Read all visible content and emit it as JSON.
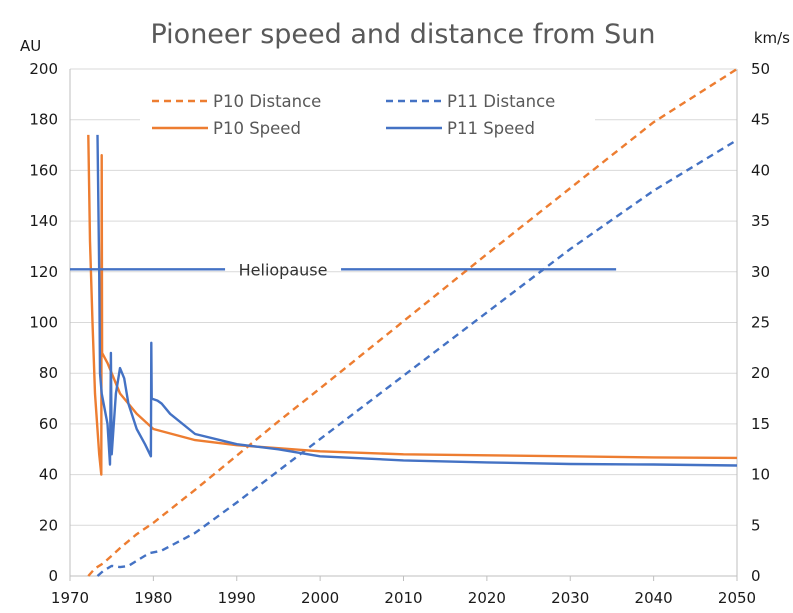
{
  "chart_data": {
    "type": "line",
    "title": "Pioneer speed and distance from Sun",
    "y_left_unit": "AU",
    "y_right_unit": "km/s",
    "xlim": [
      1970,
      2050
    ],
    "ylim_left": [
      0,
      200
    ],
    "ylim_right": [
      0,
      50
    ],
    "x_ticks": [
      "1970",
      "1980",
      "1990",
      "2000",
      "2010",
      "2020",
      "2030",
      "2040",
      "2050"
    ],
    "y_left_ticks": [
      "0",
      "20",
      "40",
      "60",
      "80",
      "100",
      "120",
      "140",
      "160",
      "180",
      "200"
    ],
    "y_right_ticks": [
      "0",
      "5",
      "10",
      "15",
      "20",
      "25",
      "30",
      "35",
      "40",
      "45",
      "50"
    ],
    "grid": "horizontal",
    "legend_position": "top-left",
    "series": [
      {
        "name": "P10 Distance",
        "axis": "left",
        "style": "dashed",
        "color": "#ED7D31",
        "points": [
          [
            1972.2,
            0
          ],
          [
            1973.0,
            3
          ],
          [
            1974.0,
            5
          ],
          [
            1975.0,
            8
          ],
          [
            1976.0,
            11
          ],
          [
            1978.0,
            16.5
          ],
          [
            1980.0,
            21
          ],
          [
            1985.0,
            34
          ],
          [
            1990.0,
            47.5
          ],
          [
            1995.0,
            61
          ],
          [
            2000.0,
            74
          ],
          [
            2010.0,
            100.5
          ],
          [
            2020.0,
            127
          ],
          [
            2030.0,
            153
          ],
          [
            2040.0,
            179
          ],
          [
            2050.0,
            200
          ]
        ]
      },
      {
        "name": "P11 Distance",
        "axis": "left",
        "style": "dashed",
        "color": "#4472C4",
        "points": [
          [
            1973.3,
            0
          ],
          [
            1974.0,
            2
          ],
          [
            1975.0,
            4
          ],
          [
            1976.0,
            3.5
          ],
          [
            1977.0,
            4
          ],
          [
            1978.0,
            6
          ],
          [
            1979.5,
            9
          ],
          [
            1981.0,
            10
          ],
          [
            1985.0,
            17
          ],
          [
            1990.0,
            29
          ],
          [
            1995.0,
            41.5
          ],
          [
            2000.0,
            54
          ],
          [
            2010.0,
            79
          ],
          [
            2020.0,
            104
          ],
          [
            2030.0,
            129
          ],
          [
            2040.0,
            152
          ],
          [
            2050.0,
            172
          ]
        ]
      },
      {
        "name": "P10 Speed",
        "axis": "right",
        "style": "solid",
        "color": "#ED7D31",
        "points": [
          [
            1972.2,
            43.5
          ],
          [
            1972.4,
            33
          ],
          [
            1972.7,
            25
          ],
          [
            1973.0,
            18
          ],
          [
            1973.5,
            12
          ],
          [
            1973.75,
            10
          ],
          [
            1973.8,
            41.5
          ],
          [
            1973.85,
            22
          ],
          [
            1974.5,
            21
          ],
          [
            1975.0,
            20
          ],
          [
            1976.0,
            18
          ],
          [
            1977.0,
            17
          ],
          [
            1978.0,
            16
          ],
          [
            1980.0,
            14.5
          ],
          [
            1985.0,
            13.4
          ],
          [
            1990.0,
            12.9
          ],
          [
            1995.0,
            12.6
          ],
          [
            2000.0,
            12.3
          ],
          [
            2010.0,
            12.0
          ],
          [
            2020.0,
            11.9
          ],
          [
            2030.0,
            11.8
          ],
          [
            2040.0,
            11.7
          ],
          [
            2050.0,
            11.65
          ]
        ]
      },
      {
        "name": "P11 Speed",
        "axis": "right",
        "style": "solid",
        "color": "#4472C4",
        "points": [
          [
            1973.3,
            43.5
          ],
          [
            1973.5,
            30
          ],
          [
            1973.6,
            20
          ],
          [
            1973.8,
            18
          ],
          [
            1974.5,
            15
          ],
          [
            1974.8,
            11
          ],
          [
            1974.9,
            22
          ],
          [
            1975.0,
            12
          ],
          [
            1975.5,
            18
          ],
          [
            1976.0,
            20.5
          ],
          [
            1976.5,
            19.5
          ],
          [
            1977.0,
            17
          ],
          [
            1978.0,
            14.5
          ],
          [
            1979.0,
            13
          ],
          [
            1979.7,
            11.8
          ],
          [
            1979.75,
            23
          ],
          [
            1979.8,
            17.5
          ],
          [
            1980.5,
            17.3
          ],
          [
            1981.0,
            17
          ],
          [
            1982.0,
            16
          ],
          [
            1985.0,
            14
          ],
          [
            1990.0,
            13
          ],
          [
            1995.0,
            12.5
          ],
          [
            2000.0,
            11.8
          ],
          [
            2010.0,
            11.4
          ],
          [
            2020.0,
            11.2
          ],
          [
            2030.0,
            11.05
          ],
          [
            2040.0,
            11.0
          ],
          [
            2050.0,
            10.9
          ]
        ]
      }
    ],
    "annotations": [
      {
        "text": "Heliopause",
        "y_left": 121,
        "x_start": 1970,
        "x_end": 2035.5,
        "color": "#4472C4"
      }
    ]
  }
}
